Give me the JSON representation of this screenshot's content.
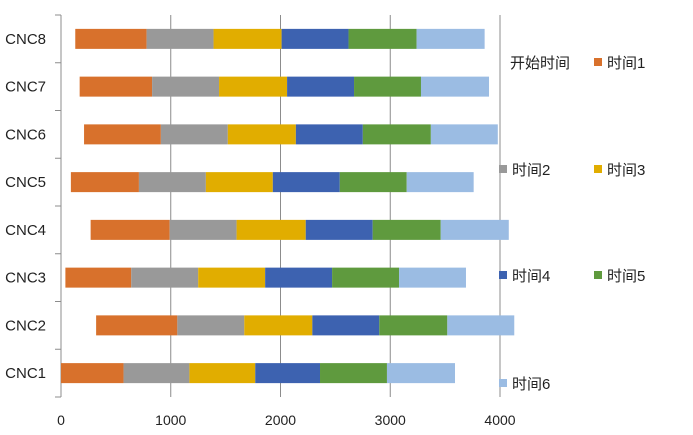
{
  "chart_data": {
    "type": "bar",
    "orientation": "horizontal",
    "stacked": true,
    "categories": [
      "CNC1",
      "CNC2",
      "CNC3",
      "CNC4",
      "CNC5",
      "CNC6",
      "CNC7",
      "CNC8"
    ],
    "xlim": [
      0,
      4000
    ],
    "xticks": [
      0,
      1000,
      2000,
      3000,
      4000
    ],
    "grid": "vertical",
    "legend_position": "right",
    "series": [
      {
        "name": "开始时间",
        "color": "none",
        "values": [
          0,
          320,
          40,
          270,
          90,
          210,
          170,
          130
        ]
      },
      {
        "name": "时间1",
        "color": "#d8712c",
        "values": [
          570,
          740,
          600,
          720,
          620,
          700,
          660,
          650
        ]
      },
      {
        "name": "时间2",
        "color": "#999999",
        "values": [
          600,
          610,
          610,
          610,
          610,
          610,
          610,
          610
        ]
      },
      {
        "name": "时间3",
        "color": "#e1ad00",
        "values": [
          600,
          620,
          610,
          630,
          610,
          620,
          620,
          620
        ]
      },
      {
        "name": "时间4",
        "color": "#3d62b0",
        "values": [
          590,
          610,
          610,
          610,
          610,
          610,
          610,
          610
        ]
      },
      {
        "name": "时间5",
        "color": "#5f9a3e",
        "values": [
          610,
          620,
          610,
          620,
          610,
          620,
          610,
          620
        ]
      },
      {
        "name": "时间6",
        "color": "#9bbce3",
        "values": [
          620,
          610,
          610,
          620,
          610,
          610,
          620,
          620
        ]
      }
    ]
  }
}
